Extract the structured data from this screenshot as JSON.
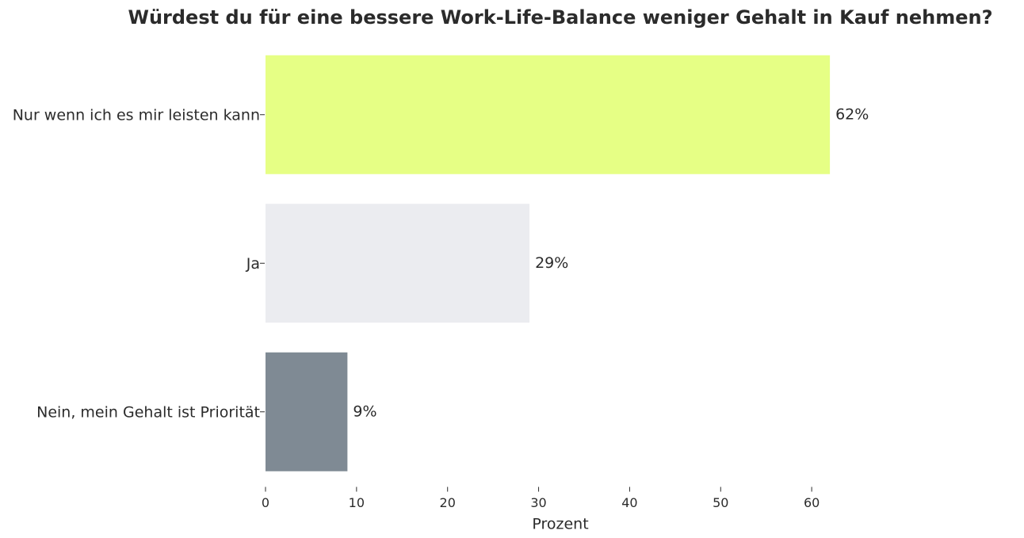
{
  "chart_data": {
    "type": "hbar",
    "title": "Würdest du für eine bessere Work-Life-Balance weniger Gehalt in Kauf nehmen?",
    "x_label": "Prozent",
    "categories": [
      "Nur wenn ich es mir leisten kann",
      "Ja",
      "Nein, mein Gehalt ist Priorität"
    ],
    "values": [
      62,
      29,
      9
    ],
    "value_labels": [
      "62%",
      "29%",
      "9%"
    ],
    "colors": [
      "#e6ff85",
      "#ebecf0",
      "#7f8a94"
    ],
    "xlim": [
      0,
      65.3
    ],
    "xticks": [
      0,
      10,
      20,
      30,
      40,
      50,
      60
    ]
  }
}
